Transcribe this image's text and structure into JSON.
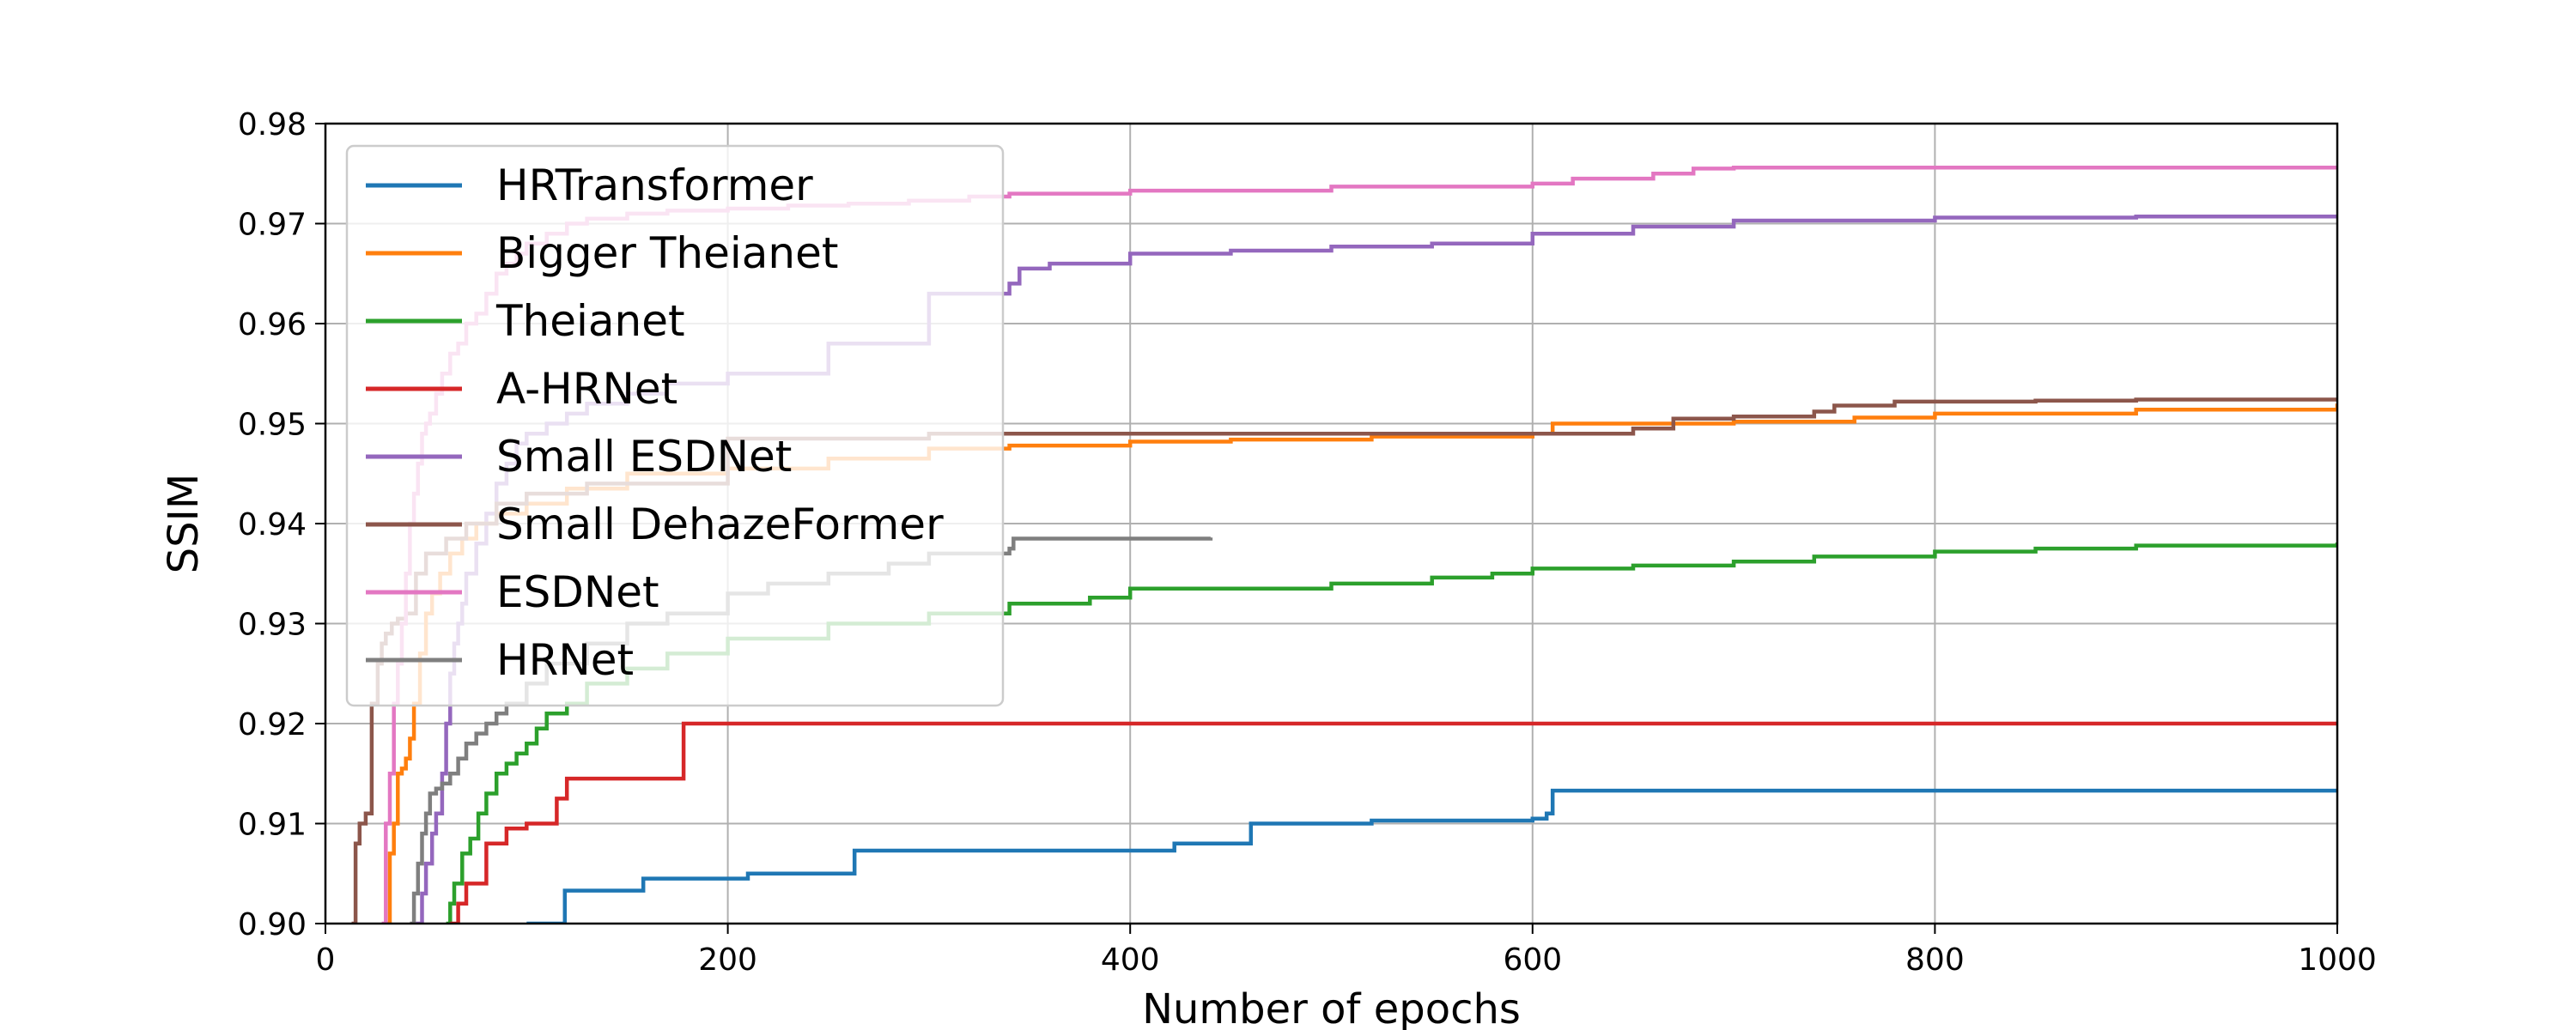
{
  "chart_data": {
    "type": "line",
    "step": true,
    "title": "",
    "xlabel": "Number of epochs",
    "ylabel": "SSIM",
    "xlim": [
      0,
      1000
    ],
    "ylim": [
      0.9,
      0.98
    ],
    "xticks": [
      0,
      200,
      400,
      600,
      800,
      1000
    ],
    "xtick_labels": [
      "0",
      "200",
      "400",
      "600",
      "800",
      "1000"
    ],
    "yticks": [
      0.9,
      0.91,
      0.92,
      0.93,
      0.94,
      0.95,
      0.96,
      0.97,
      0.98
    ],
    "ytick_labels": [
      "0.90",
      "0.91",
      "0.92",
      "0.93",
      "0.94",
      "0.95",
      "0.96",
      "0.97",
      "0.98"
    ],
    "grid": true,
    "legend_position": "upper-left",
    "series": [
      {
        "name": "HRTransformer",
        "color": "#1f77b4",
        "x": [
          100,
          118,
          119,
          158,
          210,
          262,
          263,
          380,
          422,
          460,
          490,
          520,
          600,
          607,
          610,
          1000
        ],
        "y": [
          0.9,
          0.9,
          0.9033,
          0.9045,
          0.905,
          0.905,
          0.9073,
          0.9073,
          0.908,
          0.91,
          0.91,
          0.9103,
          0.9105,
          0.911,
          0.9133,
          0.9133
        ]
      },
      {
        "name": "Bigger Theianet",
        "color": "#ff7f0e",
        "x": [
          30,
          32,
          34,
          36,
          38,
          40,
          42,
          44,
          47,
          50,
          53,
          57,
          62,
          68,
          75,
          85,
          100,
          120,
          150,
          200,
          250,
          300,
          340,
          400,
          450,
          520,
          600,
          610,
          700,
          760,
          800,
          900,
          1000
        ],
        "y": [
          0.9,
          0.907,
          0.91,
          0.915,
          0.9155,
          0.9165,
          0.9185,
          0.922,
          0.927,
          0.931,
          0.933,
          0.935,
          0.937,
          0.9385,
          0.94,
          0.941,
          0.942,
          0.9435,
          0.945,
          0.9455,
          0.9465,
          0.9475,
          0.9478,
          0.9482,
          0.9484,
          0.9487,
          0.949,
          0.95,
          0.9502,
          0.9506,
          0.951,
          0.9514,
          0.952
        ]
      },
      {
        "name": "Theianet",
        "color": "#2ca02c",
        "x": [
          60,
          62,
          64,
          68,
          72,
          76,
          80,
          85,
          90,
          95,
          100,
          105,
          110,
          120,
          130,
          150,
          170,
          200,
          250,
          300,
          340,
          380,
          400,
          500,
          550,
          580,
          600,
          650,
          700,
          740,
          800,
          850,
          900,
          1000
        ],
        "y": [
          0.9,
          0.902,
          0.904,
          0.907,
          0.9085,
          0.911,
          0.913,
          0.915,
          0.916,
          0.917,
          0.918,
          0.9195,
          0.921,
          0.922,
          0.924,
          0.9255,
          0.927,
          0.9285,
          0.93,
          0.931,
          0.932,
          0.9326,
          0.9335,
          0.934,
          0.9346,
          0.935,
          0.9355,
          0.9358,
          0.9362,
          0.9367,
          0.9372,
          0.9375,
          0.9378,
          0.9381
        ]
      },
      {
        "name": "A-HRNet",
        "color": "#d62728",
        "x": [
          62,
          66,
          70,
          80,
          90,
          100,
          110,
          115,
          120,
          140,
          175,
          178,
          180,
          1000
        ],
        "y": [
          0.9,
          0.902,
          0.904,
          0.908,
          0.9095,
          0.91,
          0.91,
          0.9125,
          0.9145,
          0.9145,
          0.9145,
          0.92,
          0.92,
          0.92
        ]
      },
      {
        "name": "Small ESDNet",
        "color": "#9467bd",
        "x": [
          45,
          48,
          50,
          53,
          55,
          58,
          60,
          62,
          64,
          66,
          68,
          70,
          75,
          80,
          85,
          90,
          95,
          100,
          110,
          120,
          130,
          150,
          170,
          200,
          250,
          300,
          340,
          345,
          360,
          400,
          450,
          500,
          550,
          600,
          650,
          700,
          800,
          900,
          1000
        ],
        "y": [
          0.9,
          0.903,
          0.906,
          0.909,
          0.911,
          0.915,
          0.92,
          0.925,
          0.928,
          0.93,
          0.932,
          0.935,
          0.938,
          0.941,
          0.944,
          0.946,
          0.948,
          0.949,
          0.95,
          0.951,
          0.952,
          0.953,
          0.954,
          0.955,
          0.958,
          0.963,
          0.964,
          0.9655,
          0.966,
          0.967,
          0.9673,
          0.9677,
          0.968,
          0.969,
          0.9697,
          0.9703,
          0.9706,
          0.9707,
          0.9708
        ]
      },
      {
        "name": "Small DehazeFormer",
        "color": "#8c564b",
        "x": [
          13,
          15,
          17,
          20,
          23,
          26,
          28,
          30,
          33,
          36,
          40,
          45,
          50,
          60,
          70,
          85,
          100,
          130,
          200,
          300,
          400,
          500,
          600,
          650,
          670,
          700,
          740,
          750,
          780,
          850,
          900,
          1000
        ],
        "y": [
          0.9,
          0.908,
          0.91,
          0.911,
          0.922,
          0.926,
          0.928,
          0.929,
          0.93,
          0.9305,
          0.931,
          0.935,
          0.937,
          0.9385,
          0.94,
          0.942,
          0.943,
          0.944,
          0.9485,
          0.949,
          0.949,
          0.949,
          0.949,
          0.9495,
          0.9505,
          0.9507,
          0.9512,
          0.9518,
          0.9522,
          0.9523,
          0.9524,
          0.9525
        ]
      },
      {
        "name": "ESDNet",
        "color": "#e377c2",
        "x": [
          28,
          30,
          32,
          34,
          36,
          38,
          40,
          42,
          44,
          46,
          48,
          50,
          52,
          55,
          58,
          62,
          66,
          70,
          75,
          80,
          85,
          90,
          95,
          100,
          110,
          120,
          130,
          150,
          170,
          200,
          230,
          260,
          290,
          320,
          340,
          400,
          490,
          500,
          600,
          620,
          660,
          680,
          700,
          1000
        ],
        "y": [
          0.9,
          0.91,
          0.915,
          0.922,
          0.926,
          0.93,
          0.935,
          0.94,
          0.943,
          0.946,
          0.949,
          0.95,
          0.951,
          0.953,
          0.955,
          0.957,
          0.958,
          0.96,
          0.961,
          0.963,
          0.965,
          0.966,
          0.967,
          0.968,
          0.969,
          0.97,
          0.9705,
          0.971,
          0.9713,
          0.9715,
          0.9718,
          0.972,
          0.9723,
          0.9727,
          0.973,
          0.9733,
          0.9733,
          0.9737,
          0.974,
          0.9745,
          0.975,
          0.9755,
          0.9756,
          0.9757
        ]
      },
      {
        "name": "HRNet",
        "color": "#7f7f7f",
        "x": [
          42,
          44,
          46,
          48,
          50,
          52,
          55,
          58,
          62,
          66,
          70,
          75,
          80,
          85,
          90,
          100,
          110,
          130,
          150,
          170,
          200,
          220,
          250,
          280,
          300,
          340,
          342,
          440
        ],
        "y": [
          0.9,
          0.903,
          0.906,
          0.909,
          0.911,
          0.913,
          0.9135,
          0.914,
          0.915,
          0.9165,
          0.918,
          0.919,
          0.92,
          0.921,
          0.922,
          0.924,
          0.926,
          0.928,
          0.93,
          0.931,
          0.933,
          0.934,
          0.935,
          0.936,
          0.937,
          0.9375,
          0.9385,
          0.9386
        ]
      }
    ]
  }
}
